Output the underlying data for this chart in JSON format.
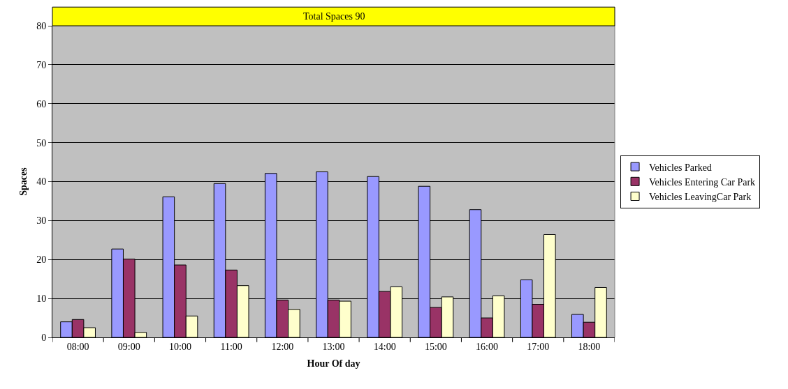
{
  "chart_data": {
    "type": "bar",
    "title": "Total Spaces 90",
    "xlabel": "Hour Of day",
    "ylabel": "Spaces",
    "categories": [
      "08:00",
      "09:00",
      "10:00",
      "11:00",
      "12:00",
      "13:00",
      "14:00",
      "15:00",
      "16:00",
      "17:00",
      "18:00"
    ],
    "series": [
      {
        "name": "Vehicles Parked",
        "color": "#9999ff",
        "values": [
          4.0,
          22.7,
          36.1,
          39.5,
          42.1,
          42.5,
          41.3,
          38.8,
          32.8,
          14.8,
          5.9
        ]
      },
      {
        "name": "Vehicles Entering Car Park",
        "color": "#993366",
        "values": [
          4.6,
          20.1,
          18.6,
          17.3,
          9.6,
          9.6,
          11.8,
          7.7,
          5.0,
          8.5,
          3.9
        ]
      },
      {
        "name": "Vehicles LeavingCar Park",
        "color": "#ffffcc",
        "values": [
          2.5,
          1.3,
          5.5,
          13.3,
          7.2,
          9.3,
          13.0,
          10.4,
          10.7,
          26.4,
          12.8
        ]
      }
    ],
    "ylim": [
      0,
      80
    ],
    "yticks": [
      0,
      10,
      20,
      30,
      40,
      50,
      60,
      70,
      80
    ],
    "grid": "y",
    "legend": "right"
  }
}
